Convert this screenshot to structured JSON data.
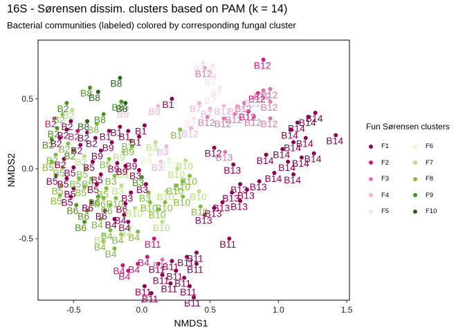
{
  "chart_data": {
    "type": "scatter",
    "title": "16S - Sørensen dissim. clusters based on PAM (k = 14)",
    "subtitle": "Bacterial communities (labeled) colored by corresponding fungal cluster",
    "xlabel": "NMDS1",
    "ylabel": "NMDS2",
    "xlim": [
      -0.76,
      1.52
    ],
    "ylim": [
      -0.94,
      0.92
    ],
    "xticks": [
      -0.5,
      0.0,
      0.5,
      1.0,
      1.5
    ],
    "xtick_labels": [
      "-0.5",
      "0.0",
      "0.5",
      "1.0",
      "1.5"
    ],
    "yticks": [
      -0.5,
      0.0,
      0.5
    ],
    "ytick_labels": [
      "-0.5",
      "0.0",
      "0.5"
    ],
    "grid": false,
    "legend": {
      "title": "Fun Sørensen clusters",
      "placement": "right",
      "entries": [
        {
          "name": "F1",
          "color": "#8E0152"
        },
        {
          "name": "F2",
          "color": "#C51B7D"
        },
        {
          "name": "F3",
          "color": "#DE77AE"
        },
        {
          "name": "F4",
          "color": "#F1B6DA"
        },
        {
          "name": "F5",
          "color": "#FDE0EF"
        },
        {
          "name": "F6",
          "color": "#E6F5D0"
        },
        {
          "name": "F7",
          "color": "#B8E186"
        },
        {
          "name": "F8",
          "color": "#7FBC41"
        },
        {
          "name": "F9",
          "color": "#4D9221"
        },
        {
          "name": "F10",
          "color": "#276419"
        }
      ]
    },
    "points": [
      {
        "x": 0.89,
        "y": 0.78,
        "label": "B12",
        "f": "F2"
      },
      {
        "x": 0.45,
        "y": 0.76,
        "label": "B7",
        "f": "F5"
      },
      {
        "x": 0.52,
        "y": 0.74,
        "label": "B7",
        "f": "F5"
      },
      {
        "x": 0.46,
        "y": 0.72,
        "label": "B12",
        "f": "F3"
      },
      {
        "x": 0.53,
        "y": 0.66,
        "label": "B7",
        "f": "F5"
      },
      {
        "x": 0.57,
        "y": 0.58,
        "label": "B7",
        "f": "F5"
      },
      {
        "x": 0.53,
        "y": 0.53,
        "label": "B7",
        "f": "F5"
      },
      {
        "x": 0.94,
        "y": 0.57,
        "label": "B12",
        "f": "F3"
      },
      {
        "x": 0.89,
        "y": 0.56,
        "label": "B12",
        "f": "F3"
      },
      {
        "x": 0.94,
        "y": 0.48,
        "label": "B12",
        "f": "F3"
      },
      {
        "x": 0.85,
        "y": 0.54,
        "label": "B12",
        "f": "F2"
      },
      {
        "x": 0.82,
        "y": 0.51,
        "label": "B12",
        "f": "F4"
      },
      {
        "x": 0.75,
        "y": 0.47,
        "label": "B12",
        "f": "F3"
      },
      {
        "x": 0.7,
        "y": 0.45,
        "label": "B12",
        "f": "F4"
      },
      {
        "x": 0.68,
        "y": 0.39,
        "label": "B12",
        "f": "F3"
      },
      {
        "x": 0.6,
        "y": 0.45,
        "label": "B12",
        "f": "F4"
      },
      {
        "x": 0.6,
        "y": 0.36,
        "label": "B12",
        "f": "F3"
      },
      {
        "x": 0.78,
        "y": 0.41,
        "label": "B12",
        "f": "F2"
      },
      {
        "x": 0.82,
        "y": 0.37,
        "label": "B12",
        "f": "F3"
      },
      {
        "x": 0.94,
        "y": 0.36,
        "label": "B12",
        "f": "F3"
      },
      {
        "x": 0.42,
        "y": 0.47,
        "label": "B7",
        "f": "F4"
      },
      {
        "x": 0.5,
        "y": 0.43,
        "label": "B7",
        "f": "F4"
      },
      {
        "x": 0.38,
        "y": 0.36,
        "label": "B7",
        "f": "F5"
      },
      {
        "x": 0.48,
        "y": 0.37,
        "label": "B12",
        "f": "F3"
      },
      {
        "x": 0.36,
        "y": 0.29,
        "label": "B12",
        "f": "F4"
      },
      {
        "x": 0.22,
        "y": 0.5,
        "label": "B1",
        "f": "F1"
      },
      {
        "x": 0.12,
        "y": 0.45,
        "label": "B9",
        "f": "F4"
      },
      {
        "x": 0.53,
        "y": 0.15,
        "label": "B12",
        "f": "F1"
      },
      {
        "x": 0.61,
        "y": 0.12,
        "label": "B13",
        "f": "F3"
      },
      {
        "x": 0.67,
        "y": 0.03,
        "label": "B13",
        "f": "F1"
      },
      {
        "x": 1.27,
        "y": 0.4,
        "label": "B14",
        "f": "F1"
      },
      {
        "x": 1.22,
        "y": 0.37,
        "label": "B14",
        "f": "F1"
      },
      {
        "x": 1.14,
        "y": 0.33,
        "label": "B14",
        "f": "F1"
      },
      {
        "x": 1.09,
        "y": 0.28,
        "label": "B14",
        "f": "F1"
      },
      {
        "x": 1.42,
        "y": 0.24,
        "label": "B14",
        "f": "F1"
      },
      {
        "x": 1.2,
        "y": 0.22,
        "label": "B14",
        "f": "F1"
      },
      {
        "x": 1.11,
        "y": 0.19,
        "label": "B14",
        "f": "F1"
      },
      {
        "x": 1.03,
        "y": 0.14,
        "label": "B14",
        "f": "F1"
      },
      {
        "x": 1.26,
        "y": 0.11,
        "label": "B14",
        "f": "F1"
      },
      {
        "x": 1.17,
        "y": 0.08,
        "label": "B14",
        "f": "F1"
      },
      {
        "x": 1.07,
        "y": 0.05,
        "label": "B14",
        "f": "F1"
      },
      {
        "x": 0.91,
        "y": 0.1,
        "label": "B14",
        "f": "F1"
      },
      {
        "x": 1.11,
        "y": -0.04,
        "label": "B14",
        "f": "F1"
      },
      {
        "x": 0.97,
        "y": -0.03,
        "label": "B14",
        "f": "F1"
      },
      {
        "x": 0.86,
        "y": -0.09,
        "label": "B13",
        "f": "F1"
      },
      {
        "x": 0.77,
        "y": -0.15,
        "label": "B13",
        "f": "F1"
      },
      {
        "x": 0.72,
        "y": -0.11,
        "label": "B13",
        "f": "F1"
      },
      {
        "x": 0.66,
        "y": -0.17,
        "label": "B13",
        "f": "F1"
      },
      {
        "x": 0.59,
        "y": -0.24,
        "label": "B13",
        "f": "F1"
      },
      {
        "x": 0.72,
        "y": -0.23,
        "label": "B13",
        "f": "F1"
      },
      {
        "x": 0.53,
        "y": -0.28,
        "label": "B13",
        "f": "F1"
      },
      {
        "x": 0.46,
        "y": -0.33,
        "label": "B13",
        "f": "F1"
      },
      {
        "x": 0.64,
        "y": -0.5,
        "label": "B11",
        "f": "F1"
      },
      {
        "x": 0.4,
        "y": -0.6,
        "label": "B11",
        "f": "F1"
      },
      {
        "x": 0.33,
        "y": -0.63,
        "label": "B11",
        "f": "F1"
      },
      {
        "x": 0.22,
        "y": -0.66,
        "label": "B11",
        "f": "F1"
      },
      {
        "x": 0.4,
        "y": -0.68,
        "label": "B11",
        "f": "F1"
      },
      {
        "x": 0.25,
        "y": -0.73,
        "label": "B11",
        "f": "F1"
      },
      {
        "x": 0.12,
        "y": -0.68,
        "label": "B11",
        "f": "F1"
      },
      {
        "x": 0.15,
        "y": -0.76,
        "label": "B11",
        "f": "F1"
      },
      {
        "x": 0.31,
        "y": -0.78,
        "label": "B11",
        "f": "F1"
      },
      {
        "x": 0.21,
        "y": -0.82,
        "label": "B11",
        "f": "F1"
      },
      {
        "x": 0.35,
        "y": -0.84,
        "label": "B11",
        "f": "F1"
      },
      {
        "x": 0.02,
        "y": -0.84,
        "label": "B11",
        "f": "F1"
      },
      {
        "x": 0.38,
        "y": -0.92,
        "label": "B11",
        "f": "F1"
      },
      {
        "x": 0.07,
        "y": -0.89,
        "label": "B11",
        "f": "F1"
      },
      {
        "x": 0.15,
        "y": -0.65,
        "label": "B11",
        "f": "F3"
      },
      {
        "x": 0.09,
        "y": -0.5,
        "label": "B11",
        "f": "F2"
      },
      {
        "x": 0.04,
        "y": -0.63,
        "label": "B4",
        "f": "F2"
      },
      {
        "x": -0.03,
        "y": -0.68,
        "label": "B4",
        "f": "F2"
      },
      {
        "x": -0.14,
        "y": -0.69,
        "label": "B4",
        "f": "F2"
      },
      {
        "x": -0.1,
        "y": -0.73,
        "label": "B4",
        "f": "F2"
      },
      {
        "x": -0.15,
        "y": -0.47,
        "label": "B4",
        "f": "F8"
      },
      {
        "x": -0.2,
        "y": -0.57,
        "label": "B4",
        "f": "F8"
      },
      {
        "x": -0.28,
        "y": -0.47,
        "label": "B4",
        "f": "F7"
      },
      {
        "x": -0.28,
        "y": -0.52,
        "label": "B4",
        "f": "F8"
      },
      {
        "x": -0.03,
        "y": -0.45,
        "label": "B4",
        "f": "F8"
      },
      {
        "x": -0.09,
        "y": -0.42,
        "label": "B4",
        "f": "F7"
      },
      {
        "x": -0.1,
        "y": -0.38,
        "label": "B4",
        "f": "F1"
      },
      {
        "x": -0.13,
        "y": -0.33,
        "label": "B4",
        "f": "F1"
      },
      {
        "x": -0.2,
        "y": -0.36,
        "label": "B4",
        "f": "F1"
      },
      {
        "x": -0.3,
        "y": -0.36,
        "label": "B4",
        "f": "F8"
      },
      {
        "x": -0.23,
        "y": -0.44,
        "label": "B4",
        "f": "F8"
      },
      {
        "x": -0.42,
        "y": -0.38,
        "label": "B6",
        "f": "F9"
      },
      {
        "x": -0.4,
        "y": -0.3,
        "label": "B6",
        "f": "F9"
      },
      {
        "x": -0.27,
        "y": -0.3,
        "label": "B6",
        "f": "F1"
      },
      {
        "x": -0.37,
        "y": -0.24,
        "label": "B6",
        "f": "F1"
      },
      {
        "x": -0.48,
        "y": -0.26,
        "label": "B6",
        "f": "F9"
      },
      {
        "x": -0.32,
        "y": -0.2,
        "label": "B6",
        "f": "F9"
      },
      {
        "x": -0.23,
        "y": -0.26,
        "label": "B6",
        "f": "F8"
      },
      {
        "x": 0.12,
        "y": -0.29,
        "label": "B10",
        "f": "F8"
      },
      {
        "x": 0.17,
        "y": -0.24,
        "label": "B10",
        "f": "F8"
      },
      {
        "x": 0.15,
        "y": -0.38,
        "label": "B10",
        "f": "F7"
      },
      {
        "x": 0.18,
        "y": -0.16,
        "label": "B10",
        "f": "F7"
      },
      {
        "x": 0.25,
        "y": -0.12,
        "label": "B10",
        "f": "F8"
      },
      {
        "x": 0.3,
        "y": -0.09,
        "label": "B10",
        "f": "F8"
      },
      {
        "x": 0.35,
        "y": -0.05,
        "label": "B10",
        "f": "F8"
      },
      {
        "x": 0.3,
        "y": -0.2,
        "label": "B10",
        "f": "F8"
      },
      {
        "x": 0.42,
        "y": -0.16,
        "label": "B10",
        "f": "F7"
      },
      {
        "x": 0.43,
        "y": -0.27,
        "label": "B10",
        "f": "F8"
      },
      {
        "x": 0.26,
        "y": 0.0,
        "label": "B10",
        "f": "F7"
      },
      {
        "x": 0.2,
        "y": 0.07,
        "label": "B10",
        "f": "F6"
      },
      {
        "x": 0.32,
        "y": 0.06,
        "label": "B10",
        "f": "F7"
      },
      {
        "x": 0.06,
        "y": -0.24,
        "label": "B10",
        "f": "F8"
      },
      {
        "x": 0.05,
        "y": -0.17,
        "label": "B3",
        "f": "F8"
      },
      {
        "x": 0.03,
        "y": -0.11,
        "label": "B3",
        "f": "F1"
      },
      {
        "x": 0.0,
        "y": -0.06,
        "label": "B3",
        "f": "F9"
      },
      {
        "x": -0.02,
        "y": -0.01,
        "label": "B3",
        "f": "F1"
      },
      {
        "x": -0.08,
        "y": -0.17,
        "label": "B3",
        "f": "F1"
      },
      {
        "x": -0.15,
        "y": -0.12,
        "label": "B3",
        "f": "F7"
      },
      {
        "x": -0.2,
        "y": -0.05,
        "label": "B3",
        "f": "F8"
      },
      {
        "x": -0.11,
        "y": 0.0,
        "label": "B3",
        "f": "F7"
      },
      {
        "x": 0.06,
        "y": 0.1,
        "label": "B3",
        "f": "F6"
      },
      {
        "x": 0.14,
        "y": 0.05,
        "label": "B3",
        "f": "F4"
      },
      {
        "x": 0.18,
        "y": 0.16,
        "label": "B3",
        "f": "F4"
      },
      {
        "x": 0.1,
        "y": 0.19,
        "label": "B3",
        "f": "F7"
      },
      {
        "x": -0.05,
        "y": 0.06,
        "label": "B9",
        "f": "F1"
      },
      {
        "x": -0.12,
        "y": 0.02,
        "label": "B9",
        "f": "F1"
      },
      {
        "x": -0.18,
        "y": 0.04,
        "label": "B9",
        "f": "F1"
      },
      {
        "x": -0.14,
        "y": 0.12,
        "label": "B9",
        "f": "F7"
      },
      {
        "x": -0.07,
        "y": 0.16,
        "label": "B9",
        "f": "F8"
      },
      {
        "x": -0.22,
        "y": 0.19,
        "label": "B9",
        "f": "F1"
      },
      {
        "x": -0.3,
        "y": 0.13,
        "label": "B9",
        "f": "F1"
      },
      {
        "x": -0.11,
        "y": 0.43,
        "label": "B9",
        "f": "F4"
      },
      {
        "x": -0.02,
        "y": 0.23,
        "label": "B1",
        "f": "F1"
      },
      {
        "x": -0.08,
        "y": 0.2,
        "label": "B1",
        "f": "F8"
      },
      {
        "x": 0.28,
        "y": 0.28,
        "label": "B1",
        "f": "F8"
      },
      {
        "x": 0.02,
        "y": 0.31,
        "label": "B1",
        "f": "F1"
      },
      {
        "x": -0.1,
        "y": 0.27,
        "label": "B1",
        "f": "F1"
      },
      {
        "x": -0.16,
        "y": 0.3,
        "label": "B1",
        "f": "F1"
      },
      {
        "x": -0.24,
        "y": 0.27,
        "label": "B1",
        "f": "F1"
      },
      {
        "x": -0.15,
        "y": 0.48,
        "label": "B8",
        "f": "F9"
      },
      {
        "x": -0.12,
        "y": 0.47,
        "label": "B8",
        "f": "F10"
      },
      {
        "x": -0.16,
        "y": 0.65,
        "label": "B8",
        "f": "F10"
      },
      {
        "x": -0.38,
        "y": 0.58,
        "label": "B8",
        "f": "F9"
      },
      {
        "x": -0.32,
        "y": 0.55,
        "label": "B8",
        "f": "F10"
      },
      {
        "x": -0.28,
        "y": 0.39,
        "label": "B8",
        "f": "F9"
      },
      {
        "x": -0.4,
        "y": 0.34,
        "label": "B8",
        "f": "F10"
      },
      {
        "x": -0.33,
        "y": 0.32,
        "label": "B8",
        "f": "F8"
      },
      {
        "x": -0.55,
        "y": 0.47,
        "label": "B2",
        "f": "F9"
      },
      {
        "x": -0.51,
        "y": 0.42,
        "label": "B2",
        "f": "F7"
      },
      {
        "x": -0.58,
        "y": 0.39,
        "label": "B2",
        "f": "F8"
      },
      {
        "x": -0.64,
        "y": 0.36,
        "label": "B2",
        "f": "F2"
      },
      {
        "x": -0.52,
        "y": 0.34,
        "label": "B2",
        "f": "F1"
      },
      {
        "x": -0.62,
        "y": 0.29,
        "label": "B2",
        "f": "F9"
      },
      {
        "x": -0.55,
        "y": 0.28,
        "label": "B2",
        "f": "F1"
      },
      {
        "x": -0.47,
        "y": 0.27,
        "label": "B2",
        "f": "F2"
      },
      {
        "x": -0.4,
        "y": 0.26,
        "label": "B2",
        "f": "F1"
      },
      {
        "x": -0.34,
        "y": 0.22,
        "label": "B2",
        "f": "F1"
      },
      {
        "x": -0.6,
        "y": 0.22,
        "label": "B2",
        "f": "F1"
      },
      {
        "x": -0.66,
        "y": 0.21,
        "label": "B2",
        "f": "F9"
      },
      {
        "x": -0.54,
        "y": 0.18,
        "label": "B2",
        "f": "F8"
      },
      {
        "x": -0.45,
        "y": 0.17,
        "label": "B2",
        "f": "F1"
      },
      {
        "x": -0.5,
        "y": 0.13,
        "label": "B2",
        "f": "F9"
      },
      {
        "x": -0.63,
        "y": 0.1,
        "label": "B2",
        "f": "F8"
      },
      {
        "x": -0.57,
        "y": 0.07,
        "label": "B2",
        "f": "F1"
      },
      {
        "x": -0.42,
        "y": 0.09,
        "label": "B2",
        "f": "F7"
      },
      {
        "x": -0.66,
        "y": 0.05,
        "label": "B5",
        "f": "F8"
      },
      {
        "x": -0.58,
        "y": 0.01,
        "label": "B5",
        "f": "F8"
      },
      {
        "x": -0.5,
        "y": 0.01,
        "label": "B5",
        "f": "F1"
      },
      {
        "x": -0.41,
        "y": 0.0,
        "label": "B5",
        "f": "F8"
      },
      {
        "x": -0.63,
        "y": -0.05,
        "label": "B5",
        "f": "F1"
      },
      {
        "x": -0.55,
        "y": -0.07,
        "label": "B5",
        "f": "F1"
      },
      {
        "x": -0.46,
        "y": -0.07,
        "label": "B5",
        "f": "F8"
      },
      {
        "x": -0.37,
        "y": -0.07,
        "label": "B5",
        "f": "F8"
      },
      {
        "x": -0.59,
        "y": -0.12,
        "label": "B5",
        "f": "F8"
      },
      {
        "x": -0.5,
        "y": -0.14,
        "label": "B5",
        "f": "F1"
      },
      {
        "x": -0.42,
        "y": -0.13,
        "label": "B5",
        "f": "F8"
      },
      {
        "x": -0.33,
        "y": -0.11,
        "label": "B5",
        "f": "F1"
      },
      {
        "x": -0.6,
        "y": -0.19,
        "label": "B5",
        "f": "F8"
      },
      {
        "x": -0.52,
        "y": -0.2,
        "label": "B5",
        "f": "F1"
      },
      {
        "x": -0.3,
        "y": -0.04,
        "label": "B5",
        "f": "F1"
      },
      {
        "x": -0.26,
        "y": -0.14,
        "label": "B5",
        "f": "F8"
      },
      {
        "x": -0.24,
        "y": 0.07,
        "label": "B5",
        "f": "F8"
      },
      {
        "x": -0.36,
        "y": 0.05,
        "label": "B5",
        "f": "F1"
      },
      {
        "x": -0.28,
        "y": -0.21,
        "label": "B6",
        "f": "F8"
      },
      {
        "x": -0.12,
        "y": -0.25,
        "label": "B6",
        "f": "F1"
      },
      {
        "x": -0.05,
        "y": -0.28,
        "label": "B10",
        "f": "F7"
      },
      {
        "x": -0.19,
        "y": -0.21,
        "label": "B10",
        "f": "F8"
      }
    ]
  }
}
